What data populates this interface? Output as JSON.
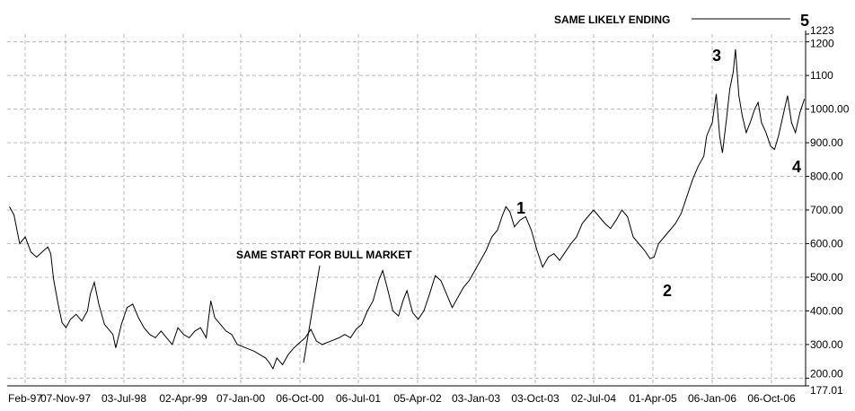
{
  "chart_data": {
    "type": "line",
    "title": "",
    "xlabel": "",
    "ylabel": "",
    "ylim": [
      177.01,
      1223
    ],
    "grid": true,
    "x_ticks": [
      "Feb-97",
      "07-Nov-97",
      "03-Jul-98",
      "02-Apr-99",
      "07-Jan-00",
      "06-Oct-00",
      "06-Jul-01",
      "05-Apr-02",
      "03-Jan-03",
      "03-Oct-03",
      "02-Jul-04",
      "01-Apr-05",
      "06-Jan-06",
      "06-Oct-06"
    ],
    "y_ticks": [
      "177.01",
      "200.00",
      "300.00",
      "400.00",
      "500.00",
      "600.00",
      "700.00",
      "800.00",
      "900.00",
      "1000.00",
      "1100",
      "1200",
      "1223"
    ],
    "series": [
      {
        "values": [
          [
            1997.12,
            710
          ],
          [
            1997.2,
            685
          ],
          [
            1997.3,
            600
          ],
          [
            1997.4,
            620
          ],
          [
            1997.5,
            575
          ],
          [
            1997.6,
            560
          ],
          [
            1997.7,
            575
          ],
          [
            1997.8,
            590
          ],
          [
            1997.85,
            570
          ],
          [
            1997.9,
            495
          ],
          [
            1997.98,
            420
          ],
          [
            1998.05,
            365
          ],
          [
            1998.12,
            350
          ],
          [
            1998.2,
            375
          ],
          [
            1998.3,
            390
          ],
          [
            1998.4,
            370
          ],
          [
            1998.5,
            400
          ],
          [
            1998.55,
            450
          ],
          [
            1998.62,
            485
          ],
          [
            1998.7,
            420
          ],
          [
            1998.8,
            360
          ],
          [
            1998.95,
            330
          ],
          [
            1999.0,
            290
          ],
          [
            1999.1,
            360
          ],
          [
            1999.2,
            410
          ],
          [
            1999.3,
            420
          ],
          [
            1999.4,
            380
          ],
          [
            1999.5,
            350
          ],
          [
            1999.6,
            330
          ],
          [
            1999.7,
            320
          ],
          [
            1999.8,
            340
          ],
          [
            1999.9,
            320
          ],
          [
            2000.0,
            300
          ],
          [
            2000.1,
            350
          ],
          [
            2000.2,
            330
          ],
          [
            2000.3,
            320
          ],
          [
            2000.4,
            340
          ],
          [
            2000.5,
            350
          ],
          [
            2000.6,
            320
          ],
          [
            2000.68,
            430
          ],
          [
            2000.75,
            380
          ],
          [
            2000.85,
            360
          ],
          [
            2000.95,
            340
          ],
          [
            2001.05,
            330
          ],
          [
            2001.15,
            300
          ],
          [
            2001.3,
            290
          ],
          [
            2001.45,
            280
          ],
          [
            2001.55,
            270
          ],
          [
            2001.65,
            260
          ],
          [
            2001.72,
            245
          ],
          [
            2001.78,
            228
          ],
          [
            2001.85,
            260
          ],
          [
            2001.95,
            240
          ],
          [
            2002.05,
            270
          ],
          [
            2002.15,
            290
          ],
          [
            2002.25,
            305
          ],
          [
            2002.35,
            320
          ],
          [
            2002.45,
            345
          ],
          [
            2002.55,
            310
          ],
          [
            2002.65,
            300
          ],
          [
            2002.8,
            310
          ],
          [
            2002.95,
            320
          ],
          [
            2003.05,
            330
          ],
          [
            2003.15,
            320
          ],
          [
            2003.25,
            345
          ],
          [
            2003.35,
            360
          ],
          [
            2003.45,
            400
          ],
          [
            2003.55,
            430
          ],
          [
            2003.65,
            490
          ],
          [
            2003.72,
            520
          ],
          [
            2003.8,
            470
          ],
          [
            2003.9,
            400
          ],
          [
            2004.0,
            385
          ],
          [
            2004.08,
            430
          ],
          [
            2004.15,
            460
          ],
          [
            2004.25,
            395
          ],
          [
            2004.35,
            375
          ],
          [
            2004.45,
            400
          ],
          [
            2004.55,
            450
          ],
          [
            2004.65,
            505
          ],
          [
            2004.75,
            490
          ],
          [
            2004.85,
            450
          ],
          [
            2004.95,
            410
          ],
          [
            2005.05,
            440
          ],
          [
            2005.15,
            470
          ],
          [
            2005.25,
            490
          ],
          [
            2005.35,
            520
          ],
          [
            2005.45,
            550
          ],
          [
            2005.55,
            580
          ],
          [
            2005.65,
            620
          ],
          [
            2005.75,
            640
          ],
          [
            2005.83,
            680
          ],
          [
            2005.9,
            710
          ],
          [
            2005.97,
            695
          ],
          [
            2006.05,
            650
          ],
          [
            2006.15,
            670
          ],
          [
            2006.25,
            680
          ],
          [
            2006.35,
            640
          ],
          [
            2006.45,
            580
          ],
          [
            2006.55,
            530
          ],
          [
            2006.65,
            560
          ],
          [
            2006.75,
            570
          ],
          [
            2006.85,
            550
          ],
          [
            2006.95,
            575
          ],
          [
            2007.05,
            600
          ],
          [
            2007.15,
            620
          ],
          [
            2007.25,
            660
          ],
          [
            2007.35,
            680
          ],
          [
            2007.45,
            700
          ],
          [
            2007.55,
            680
          ],
          [
            2007.65,
            660
          ],
          [
            2007.75,
            645
          ],
          [
            2007.85,
            670
          ],
          [
            2007.95,
            700
          ],
          [
            2008.05,
            680
          ],
          [
            2008.15,
            620
          ],
          [
            2008.25,
            600
          ],
          [
            2008.35,
            580
          ],
          [
            2008.45,
            555
          ],
          [
            2008.52,
            560
          ],
          [
            2008.6,
            600
          ],
          [
            2008.7,
            620
          ],
          [
            2008.8,
            640
          ],
          [
            2008.9,
            660
          ],
          [
            2009.0,
            690
          ],
          [
            2009.1,
            740
          ],
          [
            2009.2,
            790
          ],
          [
            2009.3,
            830
          ],
          [
            2009.4,
            860
          ],
          [
            2009.45,
            920
          ],
          [
            2009.55,
            960
          ],
          [
            2009.62,
            1045
          ],
          [
            2009.68,
            920
          ],
          [
            2009.73,
            870
          ],
          [
            2009.8,
            970
          ],
          [
            2009.86,
            1060
          ],
          [
            2009.92,
            1110
          ],
          [
            2009.96,
            1178
          ],
          [
            2010.02,
            1040
          ],
          [
            2010.08,
            980
          ],
          [
            2010.15,
            930
          ],
          [
            2010.22,
            960
          ],
          [
            2010.3,
            1000
          ],
          [
            2010.36,
            1020
          ],
          [
            2010.42,
            960
          ],
          [
            2010.5,
            930
          ],
          [
            2010.58,
            890
          ],
          [
            2010.65,
            880
          ],
          [
            2010.72,
            920
          ],
          [
            2010.8,
            980
          ],
          [
            2010.88,
            1040
          ],
          [
            2010.95,
            960
          ],
          [
            2011.02,
            930
          ],
          [
            2011.1,
            990
          ],
          [
            2011.18,
            1030
          ]
        ]
      }
    ],
    "annotations": {
      "same_start": "SAME START FOR BULL MARKET",
      "same_ending": "SAME LIKELY ENDING",
      "wave_1": "1",
      "wave_2": "2",
      "wave_3": "3",
      "wave_4": "4",
      "wave_5": "5"
    }
  }
}
